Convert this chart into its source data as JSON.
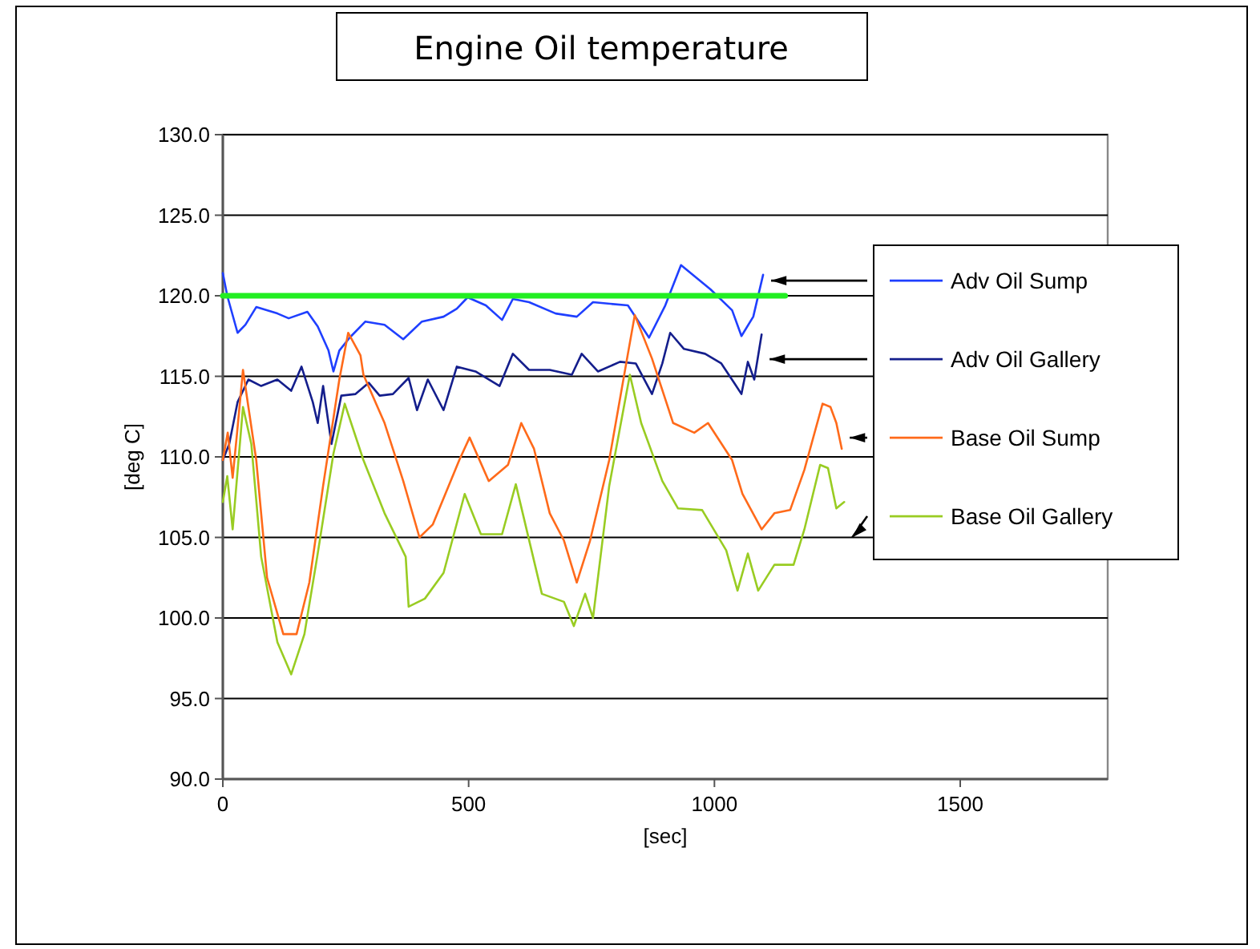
{
  "chart_data": {
    "type": "line",
    "title": "Engine Oil temperature",
    "xlabel": "[sec]",
    "ylabel": "[deg C]",
    "xlim": [
      0,
      1800
    ],
    "xticks": [
      0,
      500,
      1000,
      1500
    ],
    "ylim": [
      90,
      130
    ],
    "yticks": [
      {
        "value": 90,
        "label": "90.0"
      },
      {
        "value": 95,
        "label": "95.0"
      },
      {
        "value": 100,
        "label": "100.0"
      },
      {
        "value": 105,
        "label": "105.0"
      },
      {
        "value": 110,
        "label": "110.0"
      },
      {
        "value": 115,
        "label": "115.0"
      },
      {
        "value": 120,
        "label": "120.0"
      },
      {
        "value": 125,
        "label": "125.0"
      },
      {
        "value": 130,
        "label": "130.0"
      }
    ],
    "grid": "y",
    "legend": "right",
    "marker": "none",
    "series": [
      {
        "name": "Adv Oil Sump",
        "color": "#1f3fff",
        "x": [
          0,
          9,
          30,
          46,
          68,
          111,
          134,
          172,
          193,
          215,
          225,
          237,
          258,
          290,
          329,
          367,
          405,
          449,
          476,
          498,
          535,
          568,
          590,
          623,
          677,
          720,
          753,
          824,
          867,
          900,
          932,
          992,
          1036,
          1055,
          1079,
          1099
        ],
        "values": [
          121.4,
          120,
          117.7,
          118.2,
          119.3,
          118.9,
          118.6,
          119,
          118.1,
          116.6,
          115.3,
          116.6,
          117.4,
          118.4,
          118.2,
          117.3,
          118.4,
          118.7,
          119.2,
          119.9,
          119.4,
          118.5,
          119.8,
          119.6,
          118.9,
          118.7,
          119.6,
          119.4,
          117.4,
          119.4,
          121.9,
          120.4,
          119.1,
          117.5,
          118.7,
          121.3
        ]
      },
      {
        "name": "Adv Oil Gallery",
        "color": "#141e8c",
        "x": [
          0,
          13,
          30,
          52,
          78,
          111,
          139,
          160,
          183,
          193,
          204,
          221,
          241,
          270,
          297,
          319,
          346,
          378,
          395,
          417,
          449,
          476,
          514,
          563,
          590,
          623,
          665,
          710,
          730,
          763,
          808,
          840,
          873,
          894,
          910,
          938,
          981,
          1014,
          1040,
          1055,
          1068,
          1081,
          1096
        ],
        "values": [
          109.8,
          110.8,
          113.4,
          114.8,
          114.4,
          114.8,
          114.1,
          115.6,
          113.4,
          112.1,
          114.4,
          110.8,
          113.8,
          113.9,
          114.6,
          113.8,
          113.9,
          114.9,
          112.9,
          114.8,
          112.9,
          115.6,
          115.3,
          114.4,
          116.4,
          115.4,
          115.4,
          115.1,
          116.4,
          115.3,
          115.9,
          115.8,
          113.9,
          115.8,
          117.7,
          116.7,
          116.4,
          115.8,
          114.6,
          113.9,
          115.9,
          114.8,
          117.6
        ]
      },
      {
        "name": "Base Oil Sump",
        "color": "#ff6a1a",
        "x": [
          0,
          10,
          20,
          29,
          41,
          52,
          68,
          90,
          123,
          150,
          176,
          204,
          237,
          255,
          280,
          286,
          329,
          367,
          400,
          427,
          481,
          502,
          541,
          580,
          607,
          633,
          665,
          694,
          720,
          747,
          786,
          824,
          838,
          873,
          916,
          959,
          987,
          1036,
          1057,
          1096,
          1122,
          1154,
          1183,
          1220,
          1236,
          1248,
          1259
        ],
        "values": [
          109.8,
          111.5,
          108.7,
          111.5,
          115.4,
          113.1,
          109.8,
          102.5,
          99,
          99,
          102.2,
          108.2,
          114.8,
          117.7,
          116.3,
          115.1,
          112.1,
          108.5,
          105,
          105.8,
          109.8,
          111.2,
          108.5,
          109.5,
          112.1,
          110.5,
          106.5,
          104.8,
          102.2,
          104.8,
          109.8,
          116.4,
          118.8,
          116.1,
          112.1,
          111.5,
          112.1,
          109.8,
          107.7,
          105.5,
          106.5,
          106.7,
          109.2,
          113.3,
          113.1,
          112.1,
          110.5
        ]
      },
      {
        "name": "Base Oil Gallery",
        "color": "#99cc22",
        "x": [
          0,
          9,
          20,
          41,
          58,
          78,
          111,
          139,
          166,
          192,
          225,
          248,
          286,
          329,
          372,
          378,
          411,
          449,
          492,
          525,
          568,
          596,
          649,
          694,
          714,
          737,
          753,
          786,
          828,
          851,
          894,
          926,
          975,
          1024,
          1047,
          1068,
          1089,
          1122,
          1161,
          1183,
          1215,
          1231,
          1248,
          1264
        ],
        "values": [
          107.2,
          108.8,
          105.5,
          113.1,
          110.8,
          103.8,
          98.5,
          96.5,
          99,
          103.8,
          110.2,
          113.3,
          109.8,
          106.5,
          103.8,
          100.7,
          101.2,
          102.8,
          107.7,
          105.2,
          105.2,
          108.3,
          101.5,
          101,
          99.5,
          101.5,
          100,
          108.2,
          115.1,
          112.1,
          108.5,
          106.8,
          106.7,
          104.2,
          101.7,
          104,
          101.7,
          103.3,
          103.3,
          105.5,
          109.5,
          109.3,
          106.8,
          107.2
        ]
      },
      {
        "color": "#22ee22",
        "x": [
          0,
          1144
        ],
        "values": [
          120,
          120
        ]
      }
    ]
  }
}
